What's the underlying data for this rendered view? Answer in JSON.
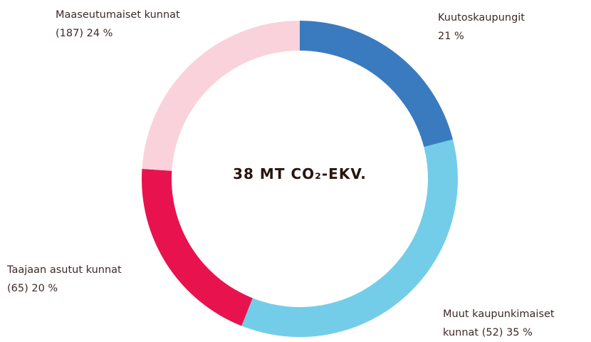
{
  "chart_data": {
    "type": "donut",
    "title": "38 MT CO₂-EKV.",
    "categories": [
      "Kuutoskaupungit",
      "Muut kaupunkimaiset kunnat (52)",
      "Taajaan asutut kunnat (65)",
      "Maaseutumaiset kunnat (187)"
    ],
    "values": [
      21,
      35,
      20,
      24
    ],
    "value_labels": [
      "21 %",
      "35 %",
      "20 %",
      "24 %"
    ],
    "colors": [
      "#3a7bbf",
      "#74cde8",
      "#e8134e",
      "#fad2dc"
    ]
  }
}
